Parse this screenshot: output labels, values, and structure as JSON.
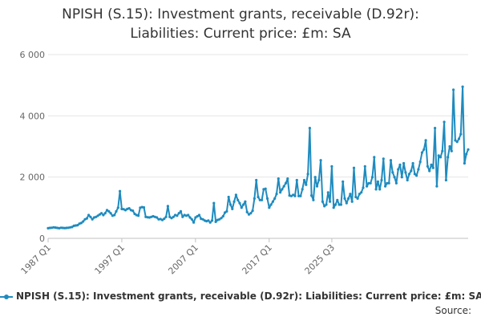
{
  "chart_data": {
    "type": "line",
    "title_lines": [
      "NPISH (S.15): Investment grants, receivable (D.92r):",
      "Liabilities: Current price: £m: SA"
    ],
    "xlabel": "",
    "ylabel": "",
    "x_ticks": [
      "1987 Q1",
      "1997 Q1",
      "2007 Q1",
      "2017 Q1",
      "2025 Q3"
    ],
    "y_ticks": [
      "0",
      "2 000",
      "4 000",
      "6 000"
    ],
    "ylim": [
      0,
      6000
    ],
    "grid": true,
    "legend_position": "bottom",
    "color": "#1f8bbf",
    "series": [
      {
        "name": "NPISH (S.15): Investment grants, receivable (D.92r): Liabilities: Current price: £m: SA",
        "start_year": 1987,
        "start_quarter": 1,
        "values": [
          330,
          340,
          345,
          360,
          350,
          340,
          330,
          345,
          340,
          335,
          340,
          345,
          360,
          370,
          410,
          420,
          430,
          480,
          500,
          550,
          620,
          650,
          760,
          700,
          620,
          680,
          700,
          740,
          780,
          820,
          760,
          820,
          920,
          880,
          820,
          740,
          760,
          880,
          1000,
          1540,
          960,
          950,
          920,
          960,
          980,
          920,
          900,
          800,
          760,
          740,
          1000,
          1020,
          1010,
          700,
          690,
          680,
          700,
          720,
          700,
          680,
          620,
          630,
          600,
          640,
          700,
          1050,
          700,
          660,
          700,
          760,
          740,
          820,
          880,
          700,
          760,
          740,
          760,
          680,
          620,
          520,
          680,
          720,
          760,
          640,
          620,
          580,
          560,
          580,
          520,
          580,
          1150,
          540,
          600,
          620,
          660,
          720,
          840,
          880,
          1350,
          1100,
          960,
          1200,
          1420,
          1250,
          1150,
          1000,
          1100,
          1200,
          860,
          780,
          820,
          900,
          1300,
          1900,
          1350,
          1250,
          1250,
          1600,
          1620,
          1300,
          1000,
          1100,
          1200,
          1300,
          1450,
          1950,
          1500,
          1600,
          1700,
          1800,
          1950,
          1400,
          1380,
          1420,
          1380,
          1900,
          1380,
          1380,
          1600,
          1900,
          1750,
          2100,
          3600,
          1400,
          1250,
          2000,
          1700,
          1900,
          2550,
          1200,
          1050,
          1100,
          1500,
          1200,
          2350,
          1000,
          1100,
          1250,
          1100,
          1100,
          1850,
          1300,
          1150,
          1300,
          1450,
          1200,
          2300,
          1350,
          1300,
          1450,
          1500,
          1650,
          2350,
          1700,
          1800,
          1800,
          2000,
          2650,
          1600,
          1850,
          1600,
          1900,
          2600,
          1700,
          1800,
          1800,
          2550,
          2150,
          2000,
          1800,
          2250,
          2400,
          2000,
          2450,
          2150,
          1900,
          2100,
          2200,
          2450,
          2100,
          2050,
          2250,
          2500,
          2800,
          2900,
          3200,
          2350,
          2200,
          2400,
          2300,
          3600,
          1700,
          2700,
          2650,
          2850,
          3800,
          1900,
          2650,
          3000,
          2850,
          4850,
          3200,
          3150,
          3250,
          3400,
          4950,
          2450,
          2750,
          2900
        ]
      }
    ]
  },
  "source_label": "Source:"
}
